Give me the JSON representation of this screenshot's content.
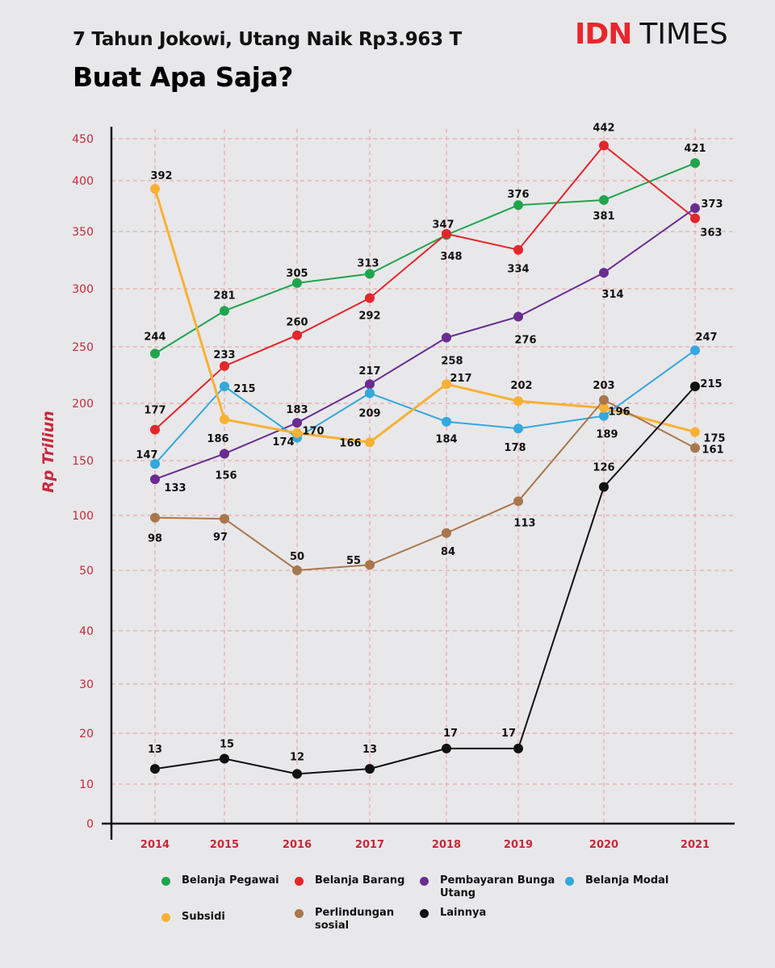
{
  "title": "7 Tahun Jokowi, Utang Naik Rp3.963 T",
  "subtitle": "Buat Apa Saja?",
  "logo": {
    "part1": "IDN",
    "part2": "TIMES"
  },
  "colors": {
    "accent": "#c8283b",
    "grid": "#e79c9c",
    "axis": "#111111"
  },
  "chart_data": {
    "type": "line",
    "ylabel": "Rp Triliun",
    "x": [
      "2014",
      "2015",
      "2016",
      "2017",
      "2018",
      "2019",
      "2020",
      "2021"
    ],
    "y_ticks": [
      "0",
      "10",
      "20",
      "30",
      "40",
      "50",
      "100",
      "150",
      "200",
      "250",
      "300",
      "350",
      "400",
      "450"
    ],
    "grid": true,
    "legend_position": "bottom",
    "series": [
      {
        "name": "Belanja Pegawai",
        "color": "#1fa54d",
        "values": [
          244,
          281,
          305,
          313,
          347,
          376,
          381,
          421
        ]
      },
      {
        "name": "Belanja Barang",
        "color": "#e3262b",
        "values": [
          177,
          233,
          260,
          292,
          348,
          334,
          442,
          363
        ]
      },
      {
        "name": "Pembayaran Bunga Utang",
        "color": "#6a2c91",
        "values": [
          133,
          156,
          183,
          217,
          258,
          276,
          314,
          373
        ]
      },
      {
        "name": "Belanja Modal",
        "color": "#33a8dd",
        "values": [
          147,
          215,
          170,
          209,
          184,
          178,
          189,
          247
        ]
      },
      {
        "name": "Subsidi",
        "color": "#f8b133",
        "values": [
          392,
          186,
          174,
          166,
          217,
          202,
          196,
          175
        ]
      },
      {
        "name": "Perlindungan sosial",
        "color": "#a9774d",
        "values": [
          98,
          97,
          50,
          55,
          84,
          113,
          203,
          161
        ]
      },
      {
        "name": "Lainnya",
        "color": "#111111",
        "values": [
          13,
          15,
          12,
          13,
          17,
          17,
          126,
          215
        ]
      }
    ]
  }
}
